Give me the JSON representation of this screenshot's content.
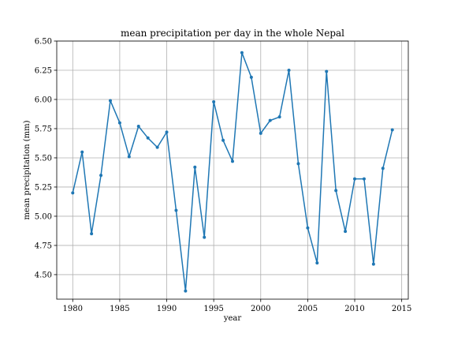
{
  "chart_data": {
    "type": "line",
    "title": "mean precipitation per day in the whole Nepal",
    "xlabel": "year",
    "ylabel": "mean precipitation (mm)",
    "xlim": [
      1978.3,
      2015.7
    ],
    "ylim": [
      4.29,
      6.5
    ],
    "xticks": [
      1980,
      1985,
      1990,
      1995,
      2000,
      2005,
      2010,
      2015
    ],
    "yticks": [
      "4.50",
      "4.75",
      "5.00",
      "5.25",
      "5.50",
      "5.75",
      "6.00",
      "6.25",
      "6.50"
    ],
    "grid": true,
    "color": "#1f77b4",
    "x": [
      1980,
      1981,
      1982,
      1983,
      1984,
      1985,
      1986,
      1987,
      1988,
      1989,
      1990,
      1991,
      1992,
      1993,
      1994,
      1995,
      1996,
      1997,
      1998,
      1999,
      2000,
      2001,
      2002,
      2003,
      2004,
      2005,
      2006,
      2007,
      2008,
      2009,
      2010,
      2011,
      2012,
      2013,
      2014
    ],
    "y": [
      5.2,
      5.55,
      4.85,
      5.35,
      5.99,
      5.8,
      5.51,
      5.77,
      5.67,
      5.59,
      5.72,
      5.05,
      4.36,
      5.42,
      4.82,
      5.98,
      5.65,
      5.47,
      6.4,
      6.19,
      5.71,
      5.82,
      5.85,
      6.25,
      5.45,
      4.9,
      4.6,
      6.24,
      5.22,
      4.87,
      5.32,
      5.32,
      4.59,
      5.41,
      5.74
    ]
  }
}
